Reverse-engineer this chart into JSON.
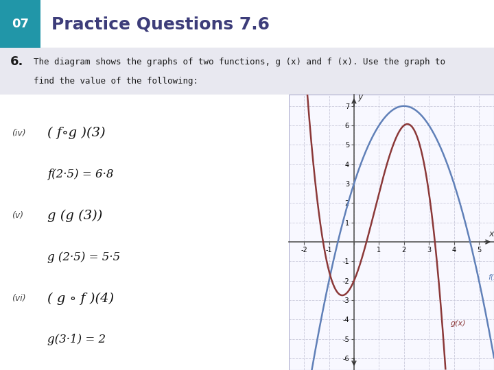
{
  "header_num": "07",
  "header_num_bg": "#2196a8",
  "header_text": "Practice Questions 7.6",
  "header_text_color": "#3d3d7a",
  "page_bg": "#ffffff",
  "question_bg": "#e8e8f0",
  "q_number": "6.",
  "q_line1": "The diagram shows the graphs of two functions, g (x) and f (x). Use the graph to",
  "q_line2": "find the value of the following:",
  "parts": [
    {
      "label": "(iv)",
      "line1": "( f∘g )(3)",
      "line2": "f(2·5) = 6·8"
    },
    {
      "label": "(v)",
      "line1": "g (g (3))",
      "line2": "g (2·5) = 5·5"
    },
    {
      "label": "(vi)",
      "line1": "( g ∘ f )(4)",
      "line2": "g(3·1) = 2"
    }
  ],
  "graph": {
    "xlim": [
      -2.6,
      5.6
    ],
    "ylim": [
      -6.6,
      7.6
    ],
    "xticks": [
      -2,
      -1,
      0,
      1,
      2,
      3,
      4,
      5
    ],
    "yticks": [
      -6,
      -5,
      -4,
      -3,
      -2,
      -1,
      1,
      2,
      3,
      4,
      5,
      6,
      7
    ],
    "fx_color": "#6080b8",
    "gx_color": "#8b3838",
    "grid_color": "#ccccdd",
    "bg_color": "#f8f8ff",
    "border_color": "#aaaacc"
  }
}
